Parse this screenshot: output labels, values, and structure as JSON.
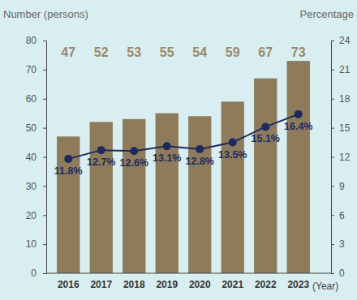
{
  "chart_data": {
    "type": "bar",
    "xlabel": "(Year)",
    "ylabel": "Number (persons)",
    "y2label": "Percentage",
    "categories": [
      "2016",
      "2017",
      "2018",
      "2019",
      "2020",
      "2021",
      "2022",
      "2023"
    ],
    "series": [
      {
        "type": "bar",
        "color": "#8d7b5c",
        "values": [
          47,
          52,
          53,
          55,
          54,
          59,
          67,
          73
        ],
        "data_labels": true
      },
      {
        "type": "line",
        "axis": "y2",
        "color": "#1e2a5e",
        "marker": "circle",
        "values": [
          11.8,
          12.7,
          12.6,
          13.1,
          12.8,
          13.5,
          15.1,
          16.4
        ],
        "value_labels": [
          "11.8%",
          "12.7%",
          "12.6%",
          "13.1%",
          "12.8%",
          "13.5%",
          "15.1%",
          "16.4%"
        ],
        "data_labels": true
      }
    ],
    "ylim": [
      0,
      80
    ],
    "yticks": [
      0,
      10,
      20,
      30,
      40,
      50,
      60,
      70,
      80
    ],
    "y2lim": [
      0,
      24
    ],
    "y2ticks": [
      0,
      3,
      6,
      9,
      12,
      15,
      18,
      21,
      24
    ],
    "grid": false
  }
}
